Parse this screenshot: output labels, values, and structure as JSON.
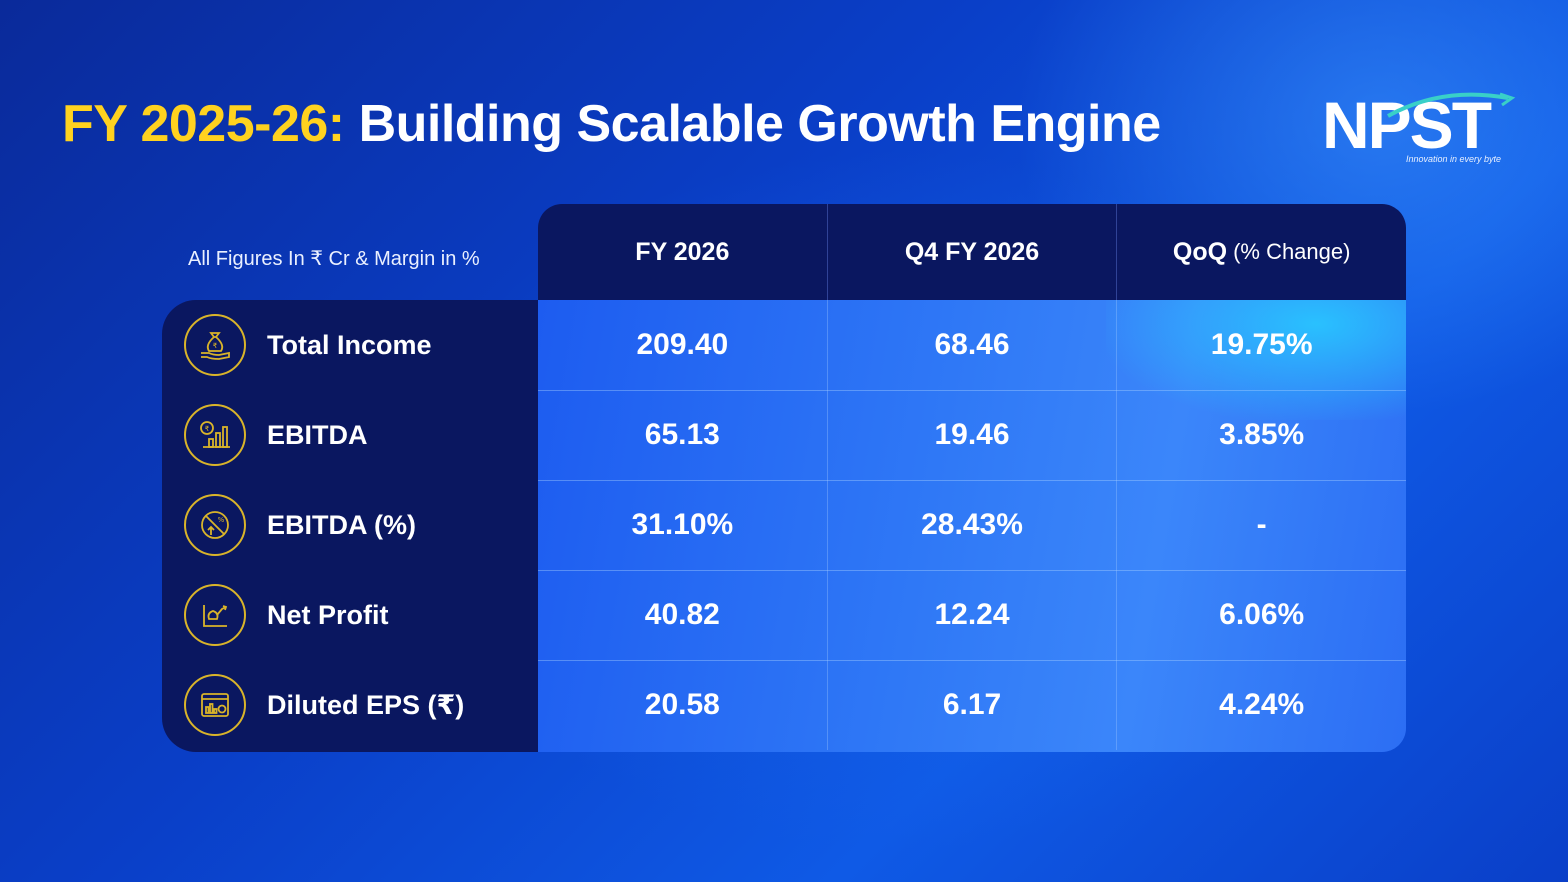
{
  "title": {
    "highlight": "FY 2025-26:",
    "main": "Building Scalable Growth Engine"
  },
  "logo": {
    "name": "NPST",
    "tagline": "Innovation in every byte"
  },
  "caption": "All Figures In ₹ Cr & Margin in %",
  "columns": [
    {
      "label": "FY 2026",
      "sub": ""
    },
    {
      "label": "Q4 FY 2026",
      "sub": ""
    },
    {
      "label": "QoQ",
      "sub": "(% Change)"
    }
  ],
  "rows": [
    {
      "label": "Total Income",
      "icon": "money-bag-hand-icon",
      "values": [
        "209.40",
        "68.46",
        "19.75%"
      ]
    },
    {
      "label": "EBITDA",
      "icon": "rupee-bar-chart-icon",
      "values": [
        "65.13",
        "19.46",
        "3.85%"
      ]
    },
    {
      "label": "EBITDA (%)",
      "icon": "percent-growth-icon",
      "values": [
        "31.10%",
        "28.43%",
        "-"
      ]
    },
    {
      "label": "Net Profit",
      "icon": "profit-chart-icon",
      "values": [
        "40.82",
        "12.24",
        "6.06%"
      ]
    },
    {
      "label": "Diluted EPS (₹)",
      "icon": "eps-dashboard-icon",
      "values": [
        "20.58",
        "6.17",
        "4.24%"
      ]
    }
  ],
  "colors": {
    "accent_yellow": "#ffd21f",
    "panel_navy": "#0a1760",
    "icon_gold": "#d9b42a"
  }
}
